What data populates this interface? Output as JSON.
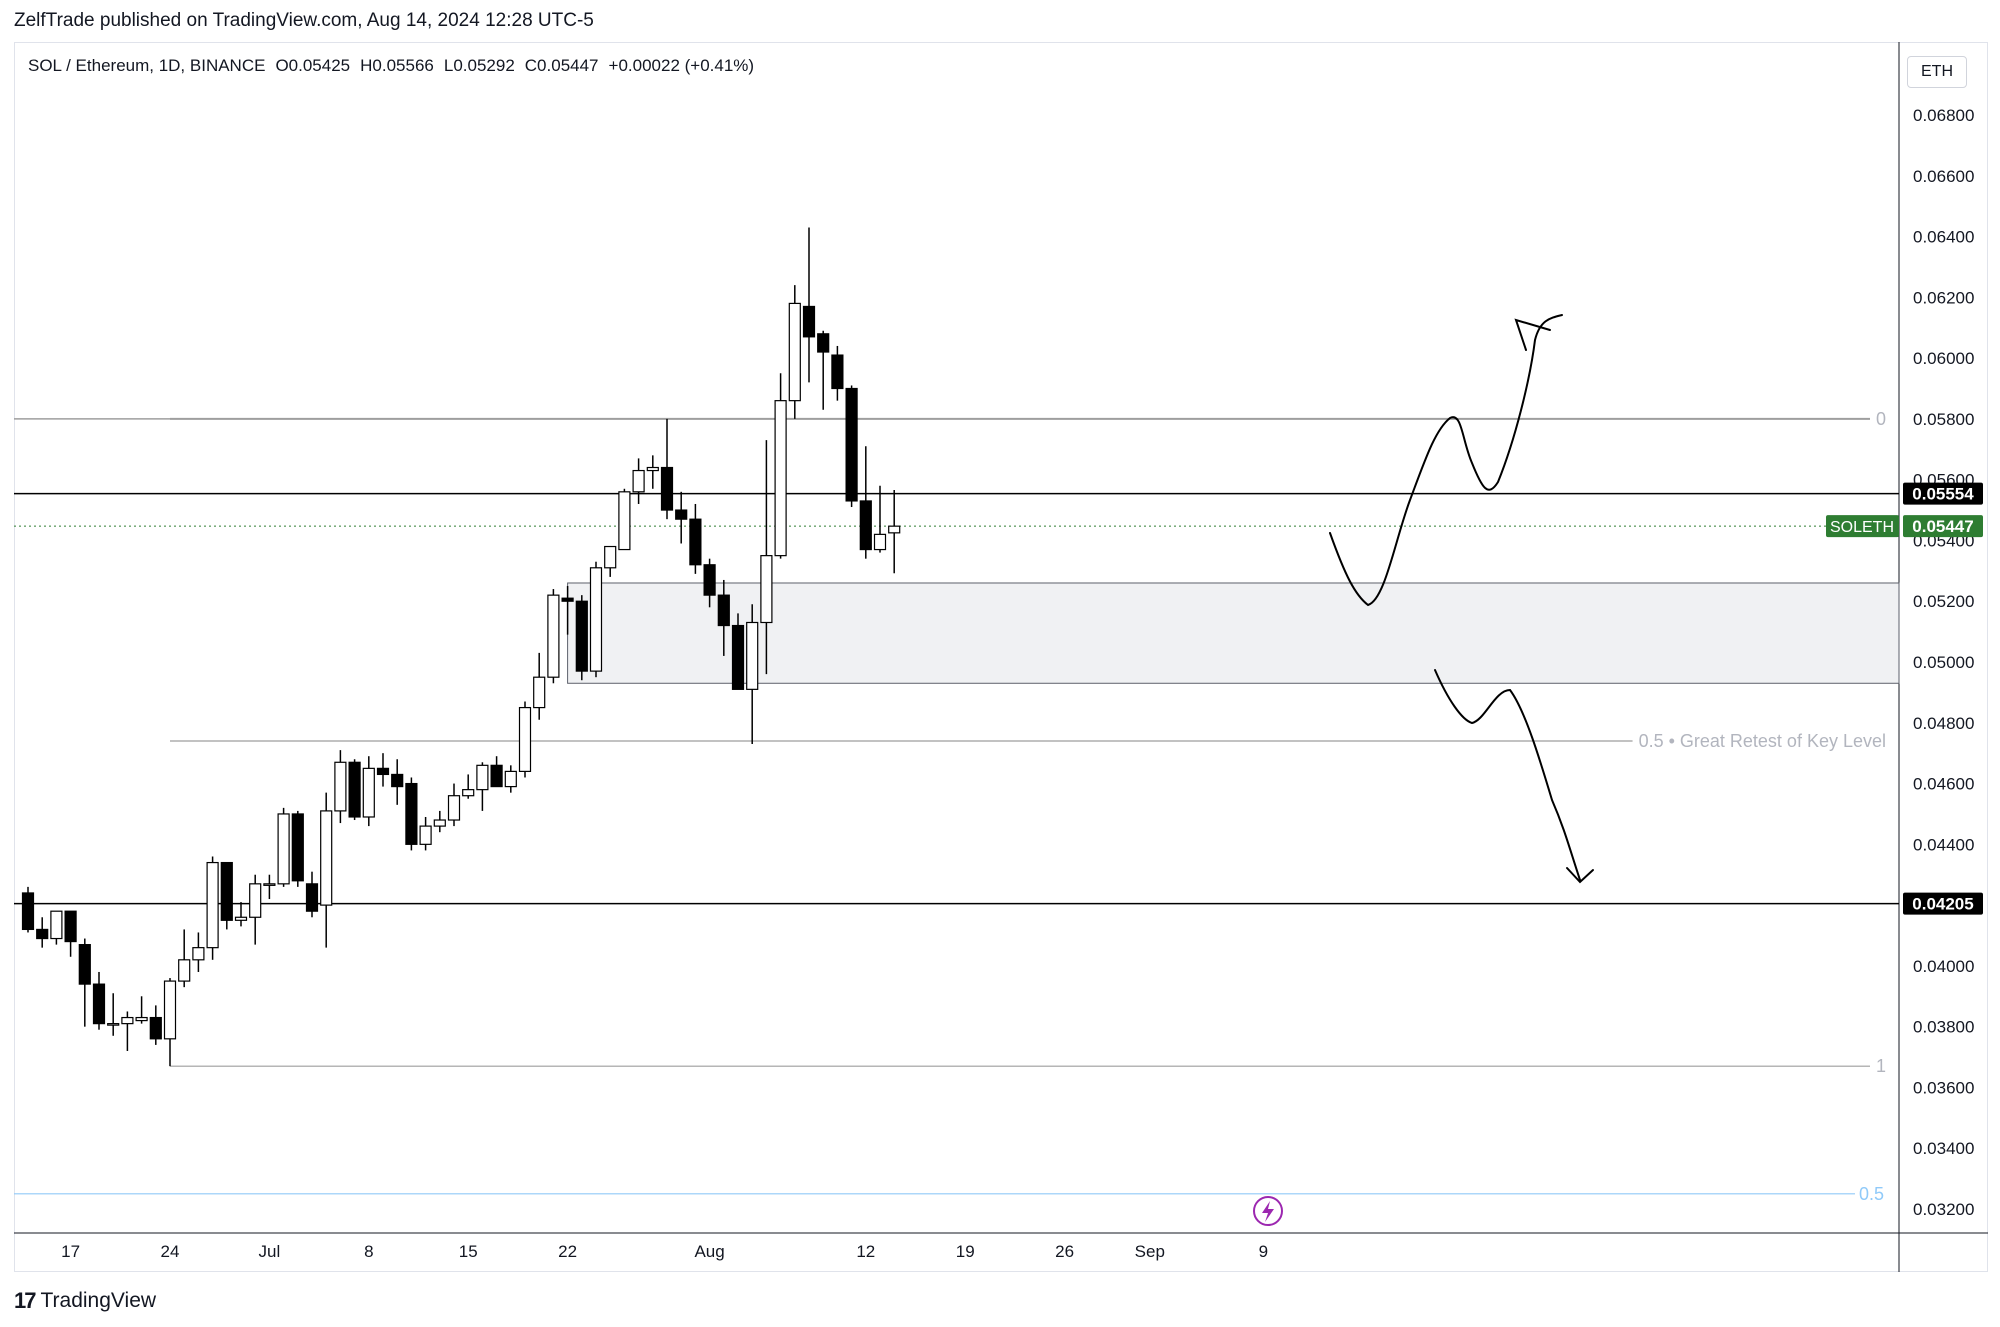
{
  "header": {
    "published_by": "ZelfTrade published on TradingView.com, Aug 14, 2024 12:28 UTC-5"
  },
  "legend": {
    "symbol": "SOL / Ethereum, 1D, BINANCE",
    "open": "O0.05425",
    "high": "H0.05566",
    "low": "L0.05292",
    "close": "C0.05447",
    "change": "+0.00022 (+0.41%)"
  },
  "currency_button": "ETH",
  "footer": {
    "brand": "TradingView",
    "icon": "tradingview-logo-icon"
  },
  "colors": {
    "bull_body": "#ffffff",
    "bear_body": "#000000",
    "price_label_bg": "#000000",
    "symbol_label_bg": "#2e7d32",
    "zone_fill": "#f0f1f3",
    "fib_line": "#9e9e9e",
    "fib_label": "#b2b5be",
    "lower_fib_line": "#90caf9",
    "ephemeral_icon": "#9c27b0"
  },
  "chart_data": {
    "type": "candlestick",
    "y_axis": {
      "min": 0.0314,
      "max": 0.0694,
      "ticks": [
        "0.06800",
        "0.06600",
        "0.06400",
        "0.06200",
        "0.06000",
        "0.05800",
        "0.05600",
        "0.05400",
        "0.05200",
        "0.05000",
        "0.04800",
        "0.04600",
        "0.04400",
        "0.04200",
        "0.04000",
        "0.03800",
        "0.03600",
        "0.03400",
        "0.03200"
      ],
      "tick_values": [
        0.068,
        0.066,
        0.064,
        0.062,
        0.06,
        0.058,
        0.056,
        0.054,
        0.052,
        0.05,
        0.048,
        0.046,
        0.044,
        0.042,
        0.04,
        0.038,
        0.036,
        0.034,
        0.032
      ]
    },
    "x_axis": {
      "start_date": "2024-06-14",
      "end_date": "2024-09-14",
      "tick_labels": [
        {
          "date": "2024-06-17",
          "label": "17"
        },
        {
          "date": "2024-06-24",
          "label": "24"
        },
        {
          "date": "2024-07-01",
          "label": "Jul"
        },
        {
          "date": "2024-07-08",
          "label": "8"
        },
        {
          "date": "2024-07-15",
          "label": "15"
        },
        {
          "date": "2024-07-22",
          "label": "22"
        },
        {
          "date": "2024-08-01",
          "label": "Aug"
        },
        {
          "date": "2024-08-12",
          "label": "12"
        },
        {
          "date": "2024-08-19",
          "label": "19"
        },
        {
          "date": "2024-08-26",
          "label": "26"
        },
        {
          "date": "2024-09-01",
          "label": "Sep"
        },
        {
          "date": "2024-09-09",
          "label": "9"
        }
      ]
    },
    "candles": [
      {
        "date": "2024-06-14",
        "o": 0.0424,
        "h": 0.0426,
        "l": 0.0411,
        "c": 0.0412
      },
      {
        "date": "2024-06-15",
        "o": 0.0412,
        "h": 0.0416,
        "l": 0.0406,
        "c": 0.0409
      },
      {
        "date": "2024-06-16",
        "o": 0.0409,
        "h": 0.0418,
        "l": 0.0407,
        "c": 0.0418
      },
      {
        "date": "2024-06-17",
        "o": 0.0418,
        "h": 0.0418,
        "l": 0.0403,
        "c": 0.0408
      },
      {
        "date": "2024-06-18",
        "o": 0.0407,
        "h": 0.0409,
        "l": 0.038,
        "c": 0.0394
      },
      {
        "date": "2024-06-19",
        "o": 0.0394,
        "h": 0.0398,
        "l": 0.0379,
        "c": 0.0381
      },
      {
        "date": "2024-06-20",
        "o": 0.0381,
        "h": 0.0391,
        "l": 0.0377,
        "c": 0.0381
      },
      {
        "date": "2024-06-21",
        "o": 0.0381,
        "h": 0.0385,
        "l": 0.0372,
        "c": 0.0383
      },
      {
        "date": "2024-06-22",
        "o": 0.0382,
        "h": 0.039,
        "l": 0.0381,
        "c": 0.0383
      },
      {
        "date": "2024-06-23",
        "o": 0.0383,
        "h": 0.0387,
        "l": 0.0374,
        "c": 0.0376
      },
      {
        "date": "2024-06-24",
        "o": 0.0376,
        "h": 0.0396,
        "l": 0.0367,
        "c": 0.0395
      },
      {
        "date": "2024-06-25",
        "o": 0.0395,
        "h": 0.0412,
        "l": 0.0393,
        "c": 0.0402
      },
      {
        "date": "2024-06-26",
        "o": 0.0402,
        "h": 0.0411,
        "l": 0.0398,
        "c": 0.0406
      },
      {
        "date": "2024-06-27",
        "o": 0.0406,
        "h": 0.0436,
        "l": 0.0402,
        "c": 0.0434
      },
      {
        "date": "2024-06-28",
        "o": 0.0434,
        "h": 0.0434,
        "l": 0.0412,
        "c": 0.0415
      },
      {
        "date": "2024-06-29",
        "o": 0.0415,
        "h": 0.0421,
        "l": 0.0413,
        "c": 0.0416
      },
      {
        "date": "2024-06-30",
        "o": 0.0416,
        "h": 0.043,
        "l": 0.0407,
        "c": 0.0427
      },
      {
        "date": "2024-07-01",
        "o": 0.0427,
        "h": 0.043,
        "l": 0.0422,
        "c": 0.0427
      },
      {
        "date": "2024-07-02",
        "o": 0.0427,
        "h": 0.0452,
        "l": 0.0426,
        "c": 0.045
      },
      {
        "date": "2024-07-03",
        "o": 0.045,
        "h": 0.0451,
        "l": 0.0426,
        "c": 0.0428
      },
      {
        "date": "2024-07-04",
        "o": 0.0427,
        "h": 0.0431,
        "l": 0.0416,
        "c": 0.0418
      },
      {
        "date": "2024-07-05",
        "o": 0.042,
        "h": 0.0457,
        "l": 0.0406,
        "c": 0.0451
      },
      {
        "date": "2024-07-06",
        "o": 0.0451,
        "h": 0.0471,
        "l": 0.0447,
        "c": 0.0467
      },
      {
        "date": "2024-07-07",
        "o": 0.0467,
        "h": 0.0468,
        "l": 0.0448,
        "c": 0.0449
      },
      {
        "date": "2024-07-08",
        "o": 0.0449,
        "h": 0.0469,
        "l": 0.0446,
        "c": 0.0465
      },
      {
        "date": "2024-07-09",
        "o": 0.0465,
        "h": 0.047,
        "l": 0.0459,
        "c": 0.0463
      },
      {
        "date": "2024-07-10",
        "o": 0.0463,
        "h": 0.0468,
        "l": 0.0453,
        "c": 0.0459
      },
      {
        "date": "2024-07-11",
        "o": 0.046,
        "h": 0.0462,
        "l": 0.0438,
        "c": 0.044
      },
      {
        "date": "2024-07-12",
        "o": 0.044,
        "h": 0.0449,
        "l": 0.0438,
        "c": 0.0446
      },
      {
        "date": "2024-07-13",
        "o": 0.0446,
        "h": 0.0451,
        "l": 0.0444,
        "c": 0.0448
      },
      {
        "date": "2024-07-14",
        "o": 0.0448,
        "h": 0.046,
        "l": 0.0446,
        "c": 0.0456
      },
      {
        "date": "2024-07-15",
        "o": 0.0456,
        "h": 0.0463,
        "l": 0.0455,
        "c": 0.0458
      },
      {
        "date": "2024-07-16",
        "o": 0.0458,
        "h": 0.0467,
        "l": 0.0451,
        "c": 0.0466
      },
      {
        "date": "2024-07-17",
        "o": 0.0466,
        "h": 0.0469,
        "l": 0.0459,
        "c": 0.0459
      },
      {
        "date": "2024-07-18",
        "o": 0.0459,
        "h": 0.0466,
        "l": 0.0457,
        "c": 0.0464
      },
      {
        "date": "2024-07-19",
        "o": 0.0464,
        "h": 0.0487,
        "l": 0.0462,
        "c": 0.0485
      },
      {
        "date": "2024-07-20",
        "o": 0.0485,
        "h": 0.0503,
        "l": 0.0481,
        "c": 0.0495
      },
      {
        "date": "2024-07-21",
        "o": 0.0495,
        "h": 0.0524,
        "l": 0.0493,
        "c": 0.0522
      },
      {
        "date": "2024-07-22",
        "o": 0.0521,
        "h": 0.0525,
        "l": 0.0509,
        "c": 0.052
      },
      {
        "date": "2024-07-23",
        "o": 0.052,
        "h": 0.0522,
        "l": 0.0494,
        "c": 0.0497
      },
      {
        "date": "2024-07-24",
        "o": 0.0497,
        "h": 0.0533,
        "l": 0.0495,
        "c": 0.0531
      },
      {
        "date": "2024-07-25",
        "o": 0.0531,
        "h": 0.0538,
        "l": 0.0528,
        "c": 0.0538
      },
      {
        "date": "2024-07-26",
        "o": 0.0537,
        "h": 0.0557,
        "l": 0.0537,
        "c": 0.0556
      },
      {
        "date": "2024-07-27",
        "o": 0.0556,
        "h": 0.0567,
        "l": 0.0552,
        "c": 0.0563
      },
      {
        "date": "2024-07-28",
        "o": 0.0563,
        "h": 0.0568,
        "l": 0.0557,
        "c": 0.0564
      },
      {
        "date": "2024-07-29",
        "o": 0.0564,
        "h": 0.058,
        "l": 0.0547,
        "c": 0.055
      },
      {
        "date": "2024-07-30",
        "o": 0.055,
        "h": 0.0556,
        "l": 0.0539,
        "c": 0.0547
      },
      {
        "date": "2024-07-31",
        "o": 0.0547,
        "h": 0.0552,
        "l": 0.0529,
        "c": 0.0532
      },
      {
        "date": "2024-08-01",
        "o": 0.0532,
        "h": 0.0534,
        "l": 0.0518,
        "c": 0.0522
      },
      {
        "date": "2024-08-02",
        "o": 0.0522,
        "h": 0.0527,
        "l": 0.0502,
        "c": 0.0512
      },
      {
        "date": "2024-08-03",
        "o": 0.0512,
        "h": 0.0516,
        "l": 0.0492,
        "c": 0.0491
      },
      {
        "date": "2024-08-04",
        "o": 0.0491,
        "h": 0.0519,
        "l": 0.0473,
        "c": 0.0513
      },
      {
        "date": "2024-08-05",
        "o": 0.0513,
        "h": 0.0573,
        "l": 0.0496,
        "c": 0.0535
      },
      {
        "date": "2024-08-06",
        "o": 0.0535,
        "h": 0.0595,
        "l": 0.0534,
        "c": 0.0586
      },
      {
        "date": "2024-08-07",
        "o": 0.0586,
        "h": 0.0624,
        "l": 0.058,
        "c": 0.0618
      },
      {
        "date": "2024-08-08",
        "o": 0.0617,
        "h": 0.0643,
        "l": 0.0592,
        "c": 0.0607
      },
      {
        "date": "2024-08-09",
        "o": 0.0608,
        "h": 0.0609,
        "l": 0.0583,
        "c": 0.0602
      },
      {
        "date": "2024-08-10",
        "o": 0.0601,
        "h": 0.0604,
        "l": 0.0586,
        "c": 0.059
      },
      {
        "date": "2024-08-11",
        "o": 0.059,
        "h": 0.0591,
        "l": 0.0551,
        "c": 0.0553
      },
      {
        "date": "2024-08-12",
        "o": 0.0553,
        "h": 0.0571,
        "l": 0.0534,
        "c": 0.0537
      },
      {
        "date": "2024-08-13",
        "o": 0.0537,
        "h": 0.0558,
        "l": 0.0536,
        "c": 0.0542
      },
      {
        "date": "2024-08-14",
        "o": 0.05425,
        "h": 0.05566,
        "l": 0.05292,
        "c": 0.05447
      }
    ],
    "horizontal_lines": [
      {
        "name": "resistance",
        "value": 0.05554,
        "label": "0.05554",
        "color": "#000000"
      },
      {
        "name": "support",
        "value": 0.04205,
        "label": "0.04205",
        "color": "#000000"
      }
    ],
    "current_price": {
      "symbol": "SOLETH",
      "value": 0.05447,
      "label": "0.05447"
    },
    "fib_levels": [
      {
        "ratio_label": "0",
        "value": 0.058
      },
      {
        "ratio_label": "0.5 • Great Retest of Key Level",
        "value": 0.0474
      },
      {
        "ratio_label": "1",
        "value": 0.0367
      }
    ],
    "lower_level": {
      "label": "0.5",
      "value": 0.0325
    },
    "zone": {
      "start_date": "2024-07-22",
      "top": 0.0526,
      "bottom": 0.0493
    }
  }
}
